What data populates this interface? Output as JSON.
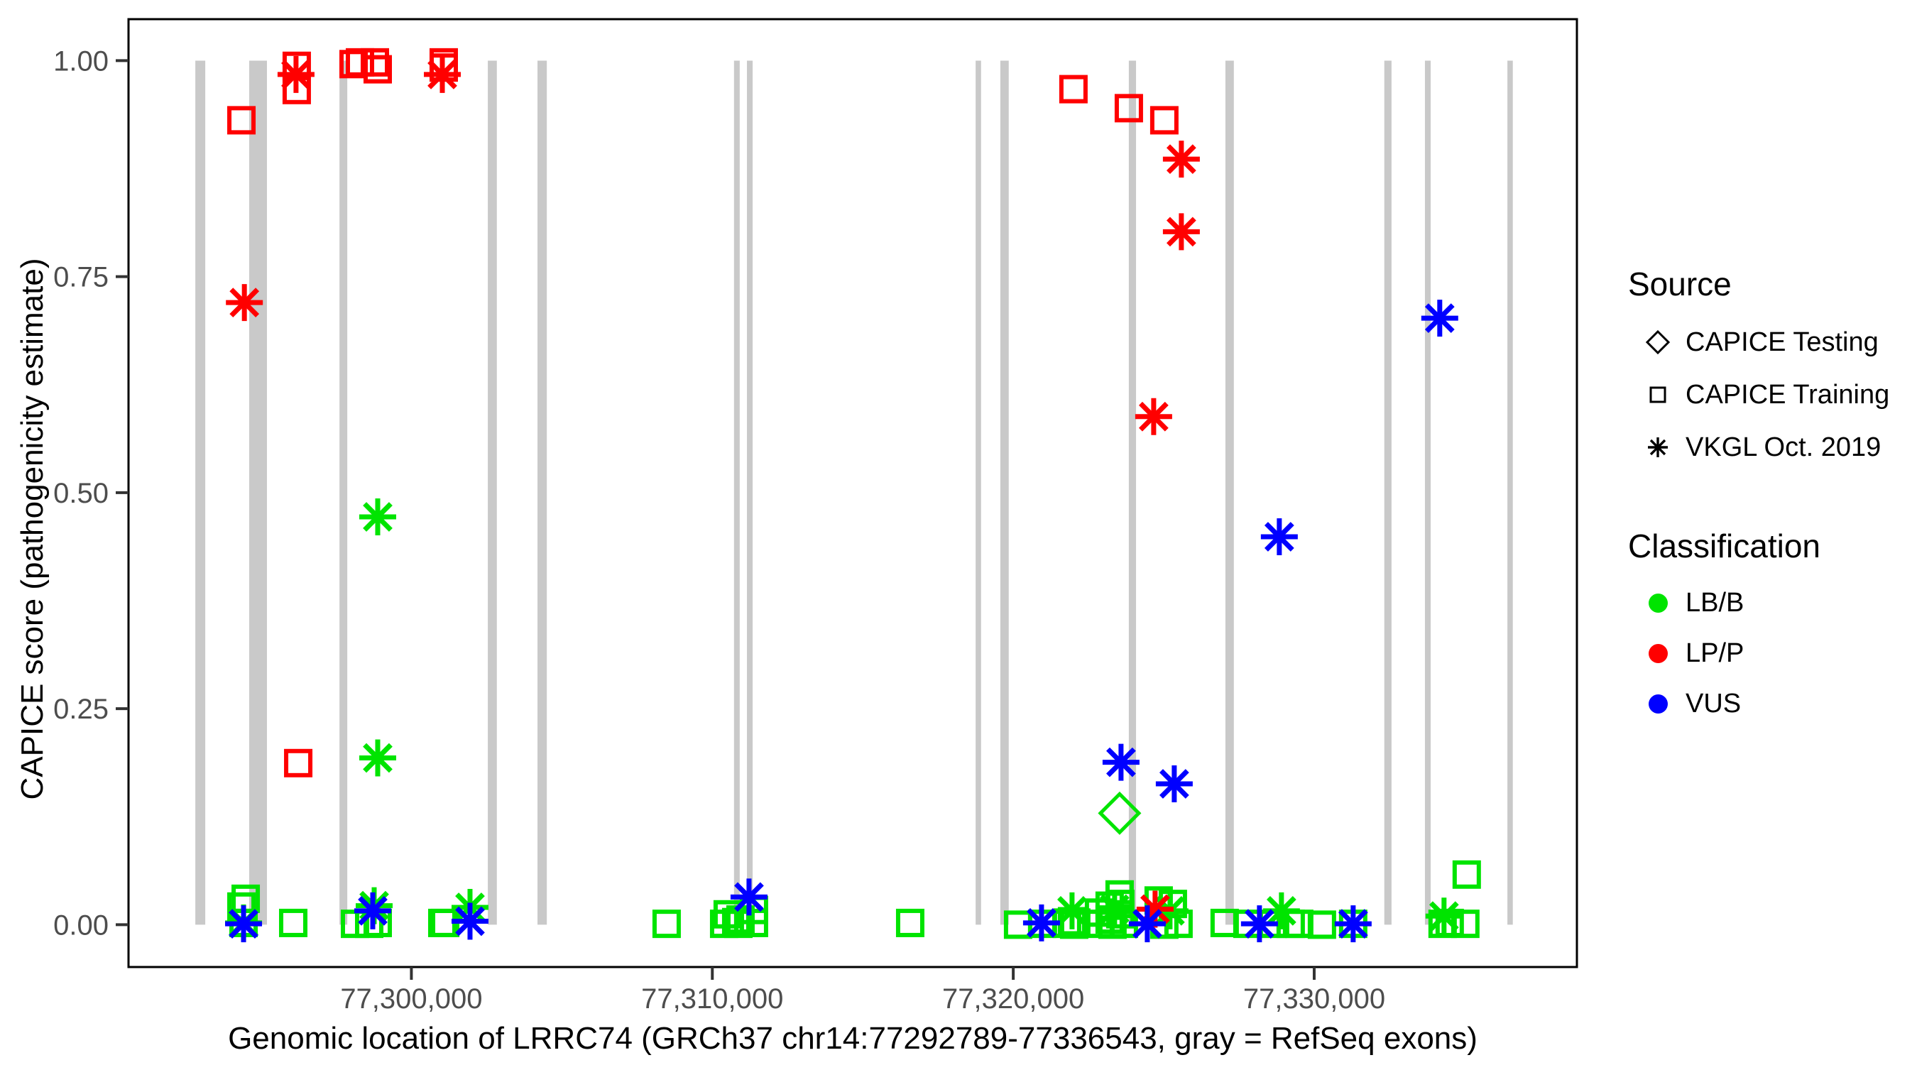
{
  "chart_data": {
    "type": "scatter",
    "title": "",
    "xlabel": "Genomic location of LRRC74 (GRCh37 chr14:77292789-77336543, gray = RefSeq exons)",
    "ylabel": "CAPICE score (pathogenicity estimate)",
    "xlim": [
      77290600,
      77338730
    ],
    "ylim": [
      -0.049,
      1.048
    ],
    "grid": false,
    "legend_position": "right",
    "x_ticks": [
      {
        "value": 77300000,
        "label": "77,300,000"
      },
      {
        "value": 77310000,
        "label": "77,310,000"
      },
      {
        "value": 77320000,
        "label": "77,320,000"
      },
      {
        "value": 77330000,
        "label": "77,330,000"
      }
    ],
    "y_ticks": [
      {
        "value": 0.0,
        "label": "0.00"
      },
      {
        "value": 0.25,
        "label": "0.25"
      },
      {
        "value": 0.5,
        "label": "0.50"
      },
      {
        "value": 0.75,
        "label": "0.75"
      },
      {
        "value": 1.0,
        "label": "1.00"
      }
    ],
    "colors": {
      "LB/B": "#00e400",
      "LP/P": "#ff0000",
      "VUS": "#0000ff",
      "exon": "#c9c9c9"
    },
    "exons": [
      [
        77292820,
        77293150
      ],
      [
        77294610,
        77295200
      ],
      [
        77297610,
        77297870
      ],
      [
        77302540,
        77302840
      ],
      [
        77304190,
        77304500
      ],
      [
        77310720,
        77310910
      ],
      [
        77311150,
        77311340
      ],
      [
        77318750,
        77318930
      ],
      [
        77319570,
        77319850
      ],
      [
        77323840,
        77324080
      ],
      [
        77327050,
        77327330
      ],
      [
        77332330,
        77332570
      ],
      [
        77333680,
        77333870
      ],
      [
        77336420,
        77336600
      ]
    ],
    "series": [
      {
        "name": "CAPICE Training / LB/B",
        "source": "CAPICE Training",
        "classification": "LB/B",
        "marker": "square",
        "points": [
          [
            77294494,
            0.03
          ],
          [
            77294352,
            0.021
          ],
          [
            77294423,
            0.002
          ],
          [
            77296074,
            0.002
          ],
          [
            77298126,
            0.001
          ],
          [
            77298598,
            0.001
          ],
          [
            77298881,
            0.002
          ],
          [
            77301028,
            0.002
          ],
          [
            77301123,
            0.002
          ],
          [
            77308482,
            0.001
          ],
          [
            77310393,
            0.001
          ],
          [
            77310511,
            0.012
          ],
          [
            77310794,
            0.003
          ],
          [
            77310865,
            0.001
          ],
          [
            77310936,
            0.006
          ],
          [
            77311384,
            0.017
          ],
          [
            77311384,
            0.002
          ],
          [
            77316575,
            0.002
          ],
          [
            77320160,
            0.0
          ],
          [
            77320962,
            0.001
          ],
          [
            77321787,
            0.001
          ],
          [
            77321953,
            0.004
          ],
          [
            77322024,
            0.0
          ],
          [
            77322849,
            0.014
          ],
          [
            77322896,
            0.001
          ],
          [
            77323203,
            0.022
          ],
          [
            77323203,
            0.006
          ],
          [
            77323297,
            0.0
          ],
          [
            77323534,
            0.035
          ],
          [
            77323557,
            0.024
          ],
          [
            77323557,
            0.012
          ],
          [
            77323675,
            0.001
          ],
          [
            77324832,
            0.028
          ],
          [
            77325020,
            0.0
          ],
          [
            77325304,
            0.024
          ],
          [
            77325492,
            0.001
          ],
          [
            77327025,
            0.002
          ],
          [
            77327780,
            0.001
          ],
          [
            77328629,
            0.001
          ],
          [
            77329219,
            0.001
          ],
          [
            77329502,
            0.001
          ],
          [
            77330257,
            0.0
          ],
          [
            77331295,
            0.001
          ],
          [
            77334267,
            0.001
          ],
          [
            77334503,
            0.002
          ],
          [
            77335022,
            0.001
          ],
          [
            77335069,
            0.058
          ]
        ]
      },
      {
        "name": "VKGL Oct. 2019 / LB/B",
        "source": "VKGL Oct. 2019",
        "classification": "LB/B",
        "marker": "asterisk",
        "points": [
          [
            77294423,
            0.002
          ],
          [
            77298763,
            0.022
          ],
          [
            77298881,
            0.472
          ],
          [
            77298881,
            0.193
          ],
          [
            77301948,
            0.02
          ],
          [
            77321953,
            0.016
          ],
          [
            77323368,
            0.018
          ],
          [
            77325209,
            0.016
          ],
          [
            77328912,
            0.016
          ],
          [
            77334314,
            0.01
          ]
        ]
      },
      {
        "name": "CAPICE Training / LP/P",
        "source": "CAPICE Training",
        "classification": "LP/P",
        "marker": "square",
        "points": [
          [
            77294352,
            0.931
          ],
          [
            77296190,
            0.994
          ],
          [
            77296190,
            0.966
          ],
          [
            77296240,
            0.187
          ],
          [
            77298079,
            0.996
          ],
          [
            77298291,
            0.998
          ],
          [
            77298787,
            0.998
          ],
          [
            77298881,
            0.99
          ],
          [
            77301075,
            0.998
          ],
          [
            77301075,
            0.992
          ],
          [
            77322000,
            0.967
          ],
          [
            77323841,
            0.945
          ],
          [
            77325020,
            0.931
          ]
        ]
      },
      {
        "name": "VKGL Oct. 2019 / LP/P",
        "source": "VKGL Oct. 2019",
        "classification": "LP/P",
        "marker": "asterisk",
        "points": [
          [
            77294450,
            0.72
          ],
          [
            77296166,
            0.984
          ],
          [
            77301028,
            0.984
          ],
          [
            77325586,
            0.886
          ],
          [
            77325586,
            0.802
          ],
          [
            77324666,
            0.588
          ],
          [
            77324713,
            0.018
          ]
        ]
      },
      {
        "name": "VKGL Oct. 2019 / VUS",
        "source": "VKGL Oct. 2019",
        "classification": "VUS",
        "marker": "asterisk",
        "points": [
          [
            77294423,
            0.001
          ],
          [
            77298716,
            0.016
          ],
          [
            77301948,
            0.004
          ],
          [
            77311219,
            0.032
          ],
          [
            77320939,
            0.002
          ],
          [
            77323581,
            0.188
          ],
          [
            77324454,
            0.001
          ],
          [
            77325350,
            0.163
          ],
          [
            77328181,
            0.001
          ],
          [
            77328841,
            0.449
          ],
          [
            77331295,
            0.001
          ],
          [
            77334172,
            0.702
          ]
        ]
      },
      {
        "name": "CAPICE Testing / LB/B",
        "source": "CAPICE Testing",
        "classification": "LB/B",
        "marker": "diamond",
        "points": [
          [
            77323534,
            0.129
          ]
        ]
      }
    ]
  },
  "legend": {
    "source": {
      "title": "Source",
      "items": [
        {
          "label": "CAPICE Testing",
          "marker": "diamond"
        },
        {
          "label": "CAPICE Training",
          "marker": "square"
        },
        {
          "label": "VKGL Oct. 2019",
          "marker": "asterisk"
        }
      ]
    },
    "classification": {
      "title": "Classification",
      "items": [
        {
          "label": "LB/B",
          "color": "#00e400"
        },
        {
          "label": "LP/P",
          "color": "#ff0000"
        },
        {
          "label": "VUS",
          "color": "#0000ff"
        }
      ]
    }
  }
}
